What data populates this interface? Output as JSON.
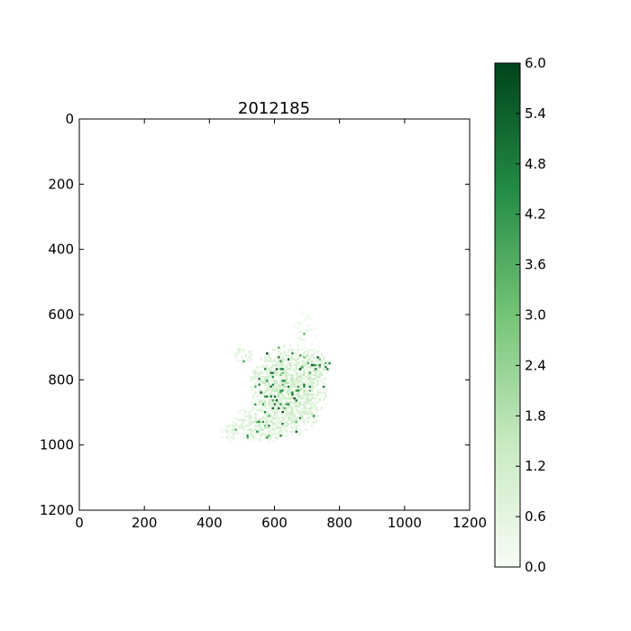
{
  "chart_data": {
    "type": "heatmap",
    "title": "2012185",
    "xlabel": "",
    "ylabel": "",
    "xlim": [
      0,
      1200
    ],
    "ylim": [
      1200,
      0
    ],
    "xticks": [
      "0",
      "200",
      "400",
      "600",
      "800",
      "1000",
      "1200"
    ],
    "yticks": [
      "0",
      "200",
      "400",
      "600",
      "800",
      "1000",
      "1200"
    ],
    "colorbar": {
      "min": 0.0,
      "max": 6.0,
      "ticks": [
        "0.0",
        "0.6",
        "1.2",
        "1.8",
        "2.4",
        "3.0",
        "3.6",
        "4.2",
        "4.8",
        "5.4",
        "6.0"
      ],
      "colormap": "Greens",
      "colors": [
        "#f7fcf5",
        "#c7e9c0",
        "#74c476",
        "#238b45",
        "#00441b"
      ]
    },
    "data_region": {
      "x_range": [
        430,
        770
      ],
      "y_range": [
        560,
        1015
      ],
      "note_values": "sparse greenish patches; most cells 0-2, scattered dense cells up to ~6"
    },
    "grid": false
  }
}
